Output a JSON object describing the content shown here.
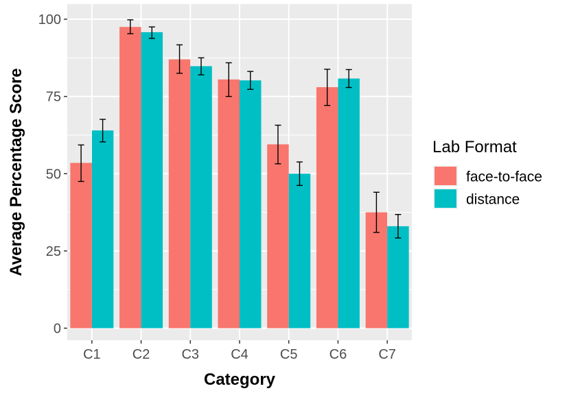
{
  "chart_data": {
    "type": "bar",
    "categories": [
      "C1",
      "C2",
      "C3",
      "C4",
      "C5",
      "C6",
      "C7"
    ],
    "series": [
      {
        "name": "face-to-face",
        "color": "#F8766D",
        "values": [
          53.5,
          97.5,
          87,
          80.5,
          59.5,
          78,
          37.5
        ],
        "error": [
          [
            47.5,
            59.3
          ],
          [
            95.3,
            99.8
          ],
          [
            82.5,
            91.7
          ],
          [
            75.0,
            85.9
          ],
          [
            53.2,
            65.7
          ],
          [
            72.1,
            83.8
          ],
          [
            31.0,
            44.0
          ]
        ]
      },
      {
        "name": "distance",
        "color": "#00BFC4",
        "values": [
          64,
          95.8,
          84.8,
          80.2,
          50,
          80.8,
          33
        ],
        "error": [
          [
            60.3,
            67.6
          ],
          [
            93.8,
            97.5
          ],
          [
            82.0,
            87.5
          ],
          [
            77.3,
            83.1
          ],
          [
            46.2,
            53.8
          ],
          [
            77.9,
            83.7
          ],
          [
            29.2,
            36.8
          ]
        ]
      }
    ],
    "xlabel": "Category",
    "ylabel": "Average Percentage Score",
    "ylim": [
      0,
      100
    ],
    "yticks": [
      0,
      25,
      50,
      75,
      100
    ],
    "legend_title": "Lab Format",
    "legend_position": "right",
    "grid": true,
    "panel_background": "#EBEBEB"
  }
}
